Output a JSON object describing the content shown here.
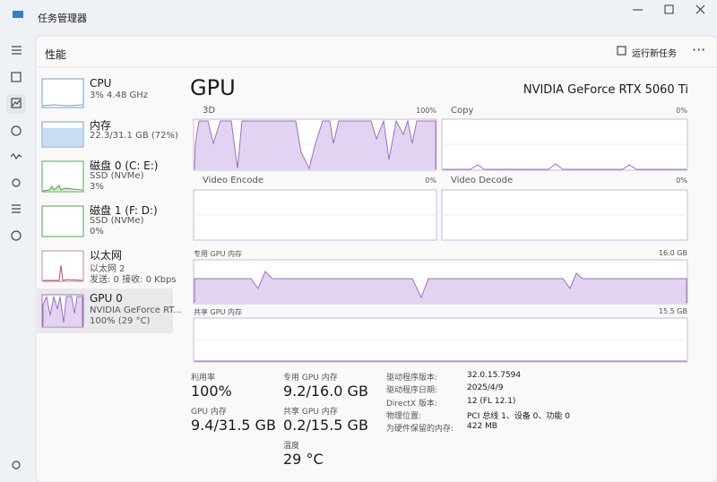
{
  "window": {
    "title": "任务管理器"
  },
  "page": {
    "title": "性能",
    "run_task": "运行新任务"
  },
  "devices": [
    {
      "name": "CPU",
      "lines": [
        "3% 4.48 GHz"
      ]
    },
    {
      "name": "内存",
      "lines": [
        "22.3/31.1 GB (72%)"
      ]
    },
    {
      "name": "磁盘 0 (C: E:)",
      "lines": [
        "SSD (NVMe)",
        "3%"
      ]
    },
    {
      "name": "磁盘 1 (F: D:)",
      "lines": [
        "SSD (NVMe)",
        "0%"
      ]
    },
    {
      "name": "以太网",
      "lines": [
        "以太网 2",
        "发送: 0 接收: 0 Kbps"
      ]
    },
    {
      "name": "GPU 0",
      "lines": [
        "NVIDIA GeForce RT...",
        "100% (29 °C)"
      ]
    }
  ],
  "gpu": {
    "title": "GPU",
    "model": "NVIDIA GeForce RTX 5060 Ti",
    "graphs": [
      {
        "name": "3D",
        "max": "100%"
      },
      {
        "name": "Copy",
        "max": "0%"
      },
      {
        "name": "Video Encode",
        "max": "0%"
      },
      {
        "name": "Video Decode",
        "max": "0%"
      }
    ],
    "dedicated": {
      "label": "专用 GPU 内存",
      "max": "16.0 GB"
    },
    "shared": {
      "label": "共享 GPU 内存",
      "max": "15.5 GB"
    }
  },
  "stats": [
    {
      "label": "利用率",
      "value": "100%"
    },
    {
      "label": "专用 GPU 内存",
      "value": "9.2/16.0 GB"
    },
    {
      "label": "GPU 内存",
      "value": "9.4/31.5 GB"
    },
    {
      "label": "共享 GPU 内存",
      "value": "0.2/15.5 GB"
    },
    {
      "label": "温度",
      "value": "29 °C"
    }
  ],
  "details": [
    {
      "label": "驱动程序版本:",
      "value": "32.0.15.7594"
    },
    {
      "label": "驱动程序日期:",
      "value": "2025/4/9"
    },
    {
      "label": "DirectX 版本:",
      "value": "12 (FL 12.1)"
    },
    {
      "label": "物理位置:",
      "value": "PCI 总线 1、设备 0、功能 0"
    },
    {
      "label": "为硬件保留的内存:",
      "value": "422 MB"
    }
  ]
}
